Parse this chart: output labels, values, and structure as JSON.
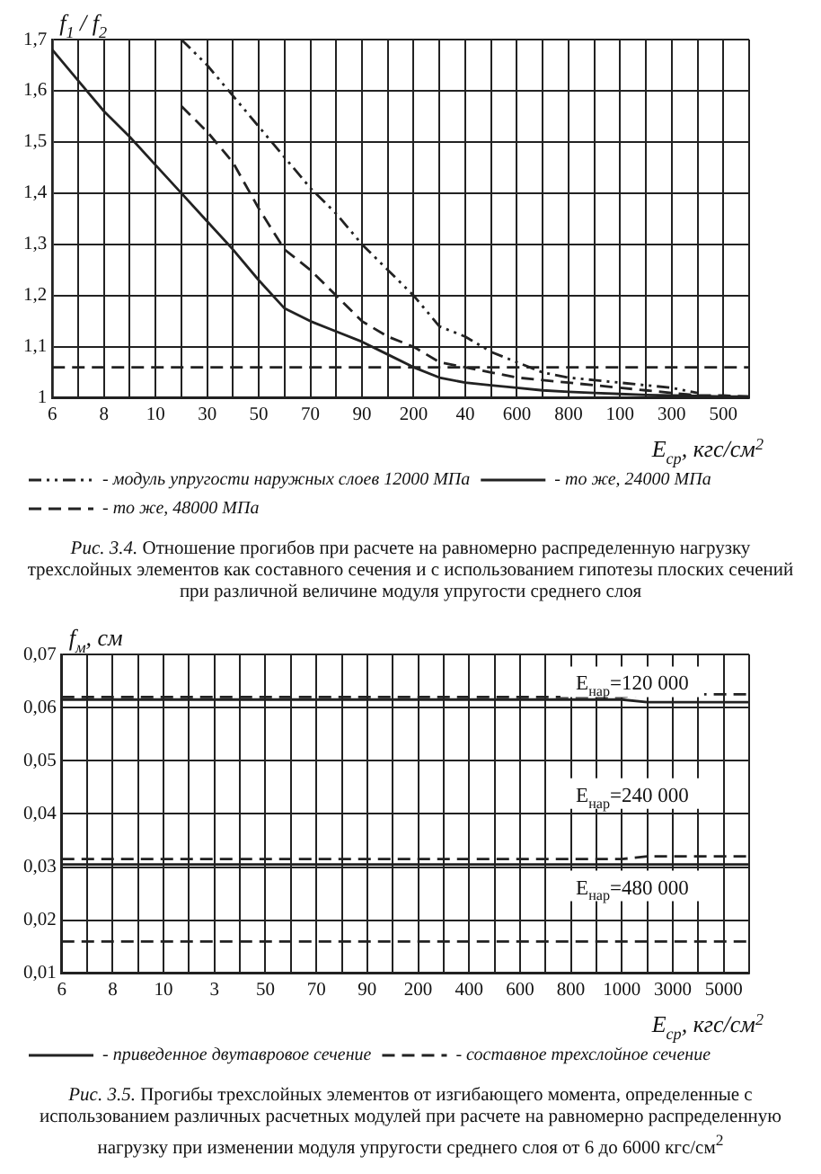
{
  "chart_data": [
    {
      "type": "line",
      "ylabel": "f$_{1}$ / f$_{2}$",
      "xlabel": "E$_{ср}$, кгс/см$^{2}$",
      "categories": [
        "6",
        null,
        "8",
        null,
        "10",
        null,
        "30",
        null,
        "50",
        null,
        "70",
        null,
        "90",
        null,
        "200",
        null,
        "40",
        null,
        "600",
        null,
        "800",
        null,
        "100",
        null,
        "300",
        null,
        "500",
        null
      ],
      "series": [
        {
          "name": "- модуль упругости наружных слоев 12000 МПа",
          "color": "#222222",
          "line_style": "dashdot",
          "values": [
            null,
            null,
            null,
            null,
            null,
            1.7,
            1.65,
            1.59,
            1.53,
            1.47,
            1.41,
            1.36,
            1.3,
            1.25,
            1.2,
            1.14,
            1.12,
            1.09,
            1.07,
            1.05,
            1.04,
            1.035,
            1.03,
            1.025,
            1.02,
            1.01,
            null,
            null
          ]
        },
        {
          "name": "- то же, 24000 МПа",
          "color": "#222222",
          "line_style": "solid",
          "values": [
            1.68,
            1.62,
            1.56,
            1.51,
            1.455,
            1.4,
            1.345,
            1.29,
            1.23,
            1.175,
            1.15,
            1.13,
            1.11,
            1.085,
            1.06,
            1.04,
            1.03,
            1.025,
            1.02,
            1.015,
            1.012,
            1.01,
            1.008,
            1.006,
            1.005,
            1.004,
            1.003,
            1.003
          ]
        },
        {
          "name": "- то же, 48000 МПа",
          "color": "#222222",
          "line_style": "dashed",
          "values": [
            null,
            null,
            null,
            null,
            null,
            1.57,
            1.52,
            1.46,
            1.37,
            1.29,
            1.25,
            1.2,
            1.15,
            1.12,
            1.1,
            1.07,
            1.06,
            1.05,
            1.04,
            1.035,
            1.03,
            1.025,
            1.02,
            1.015,
            1.01,
            1.005,
            1.005,
            1.003
          ]
        }
      ],
      "ref_lines": [
        {
          "axis": "y",
          "value": 1.06,
          "line_style": "dashed",
          "color": "#222222"
        }
      ],
      "ylim": [
        1,
        1.7
      ],
      "yticks": [
        1,
        {
          "value": 1.1,
          "label": "1,1"
        },
        {
          "value": 1.2,
          "label": "1,2"
        },
        {
          "value": 1.3,
          "label": "1,3"
        },
        {
          "value": 1.4,
          "label": "1,4"
        },
        {
          "value": 1.5,
          "label": "1,5"
        },
        {
          "value": 1.6,
          "label": "1,6"
        },
        {
          "value": 1.7,
          "label": "1,7"
        }
      ],
      "grid": true,
      "legend": "bottom",
      "marker": "none",
      "annotations": [
        "Рис. 3.4. Отношение прогибов при расчете на равномерно распределенную нагрузку трехслойных элементов как составного сечения и с использованием гипотезы плоских сечений при различной величине модуля упругости среднего слоя"
      ]
    },
    {
      "type": "line",
      "ylabel": "f$_{м}$, см",
      "xlabel": "E$_{ср}$, кгс/см$^{2}$",
      "categories": [
        "6",
        null,
        "8",
        null,
        "10",
        null,
        "3",
        null,
        "50",
        null,
        "70",
        null,
        "90",
        null,
        "200",
        null,
        "400",
        null,
        "600",
        null,
        "800",
        null,
        "1000",
        null,
        "3000",
        null,
        "5000",
        null
      ],
      "series": [
        {
          "name": "- приведенное двутавровое сечение",
          "color": "#222222",
          "line_style": "solid",
          "values": [
            0.0615,
            0.0615,
            0.0615,
            0.0615,
            0.0615,
            0.0615,
            0.0615,
            0.0615,
            0.0615,
            0.0615,
            0.0615,
            0.0615,
            0.0615,
            0.0615,
            0.0615,
            0.0615,
            0.0615,
            0.0615,
            0.0615,
            0.0615,
            0.0615,
            0.0615,
            0.0615,
            0.061,
            0.061,
            0.061,
            0.061,
            0.061
          ]
        },
        {
          "name": "- составное трехслойное сечение",
          "color": "#222222",
          "line_style": "dashed",
          "values": [
            0.062,
            0.062,
            0.062,
            0.062,
            0.062,
            0.062,
            0.062,
            0.062,
            0.062,
            0.062,
            0.062,
            0.062,
            0.062,
            0.062,
            0.062,
            0.062,
            0.062,
            0.062,
            0.062,
            0.062,
            0.062,
            0.062,
            0.062,
            0.0625,
            0.0625,
            0.0625,
            0.0625,
            0.0625
          ]
        },
        {
          "color": "#222222",
          "line_style": "solid",
          "values": [
            0.0305,
            0.0305,
            0.0305,
            0.0305,
            0.0305,
            0.0305,
            0.0305,
            0.0305,
            0.0305,
            0.0305,
            0.0305,
            0.0305,
            0.0305,
            0.0305,
            0.0305,
            0.0305,
            0.0305,
            0.0305,
            0.0305,
            0.0305,
            0.0305,
            0.0305,
            0.0305,
            0.0305,
            0.0305,
            0.0305,
            0.0305,
            0.0305
          ]
        },
        {
          "color": "#222222",
          "line_style": "dashed",
          "values": [
            0.0315,
            0.0315,
            0.0315,
            0.0315,
            0.0315,
            0.0315,
            0.0315,
            0.0315,
            0.0315,
            0.0315,
            0.0315,
            0.0315,
            0.0315,
            0.0315,
            0.0315,
            0.0315,
            0.0315,
            0.0315,
            0.0315,
            0.0315,
            0.0315,
            0.0315,
            0.0315,
            0.032,
            0.032,
            0.032,
            0.032,
            0.032
          ]
        },
        {
          "color": "#222222",
          "line_style": "dashed",
          "values": [
            0.016,
            0.016,
            0.016,
            0.016,
            0.016,
            0.016,
            0.016,
            0.016,
            0.016,
            0.016,
            0.016,
            0.016,
            0.016,
            0.016,
            0.016,
            0.016,
            0.016,
            0.016,
            0.016,
            0.016,
            0.016,
            0.016,
            0.016,
            0.016,
            0.016,
            0.016,
            0.016,
            0.016
          ]
        }
      ],
      "ylim": [
        0.01,
        0.07
      ],
      "yticks": [
        {
          "value": 0.01,
          "label": "0,01"
        },
        {
          "value": 0.02,
          "label": "0,02"
        },
        {
          "value": 0.03,
          "label": "0,03"
        },
        {
          "value": 0.04,
          "label": "0,04"
        },
        {
          "value": 0.05,
          "label": "0,05"
        },
        {
          "value": 0.06,
          "label": "0,06"
        },
        {
          "value": 0.07,
          "label": "0,07"
        }
      ],
      "grid": true,
      "legend": "bottom",
      "marker": "none",
      "annotations": [
        "E$_{нар}$=120 000",
        "E$_{нар}$=240 000",
        "E$_{нар}$=480 000",
        "Рис. 3.5. Прогибы трехслойных элементов от изгибающего момента, определенные с использованием различных расчетных модулей при расчете на равномерно распределенную нагрузку при изменении модуля упругости среднего слоя от 6 до 6000 кгс/см$^{2}$"
      ]
    }
  ]
}
